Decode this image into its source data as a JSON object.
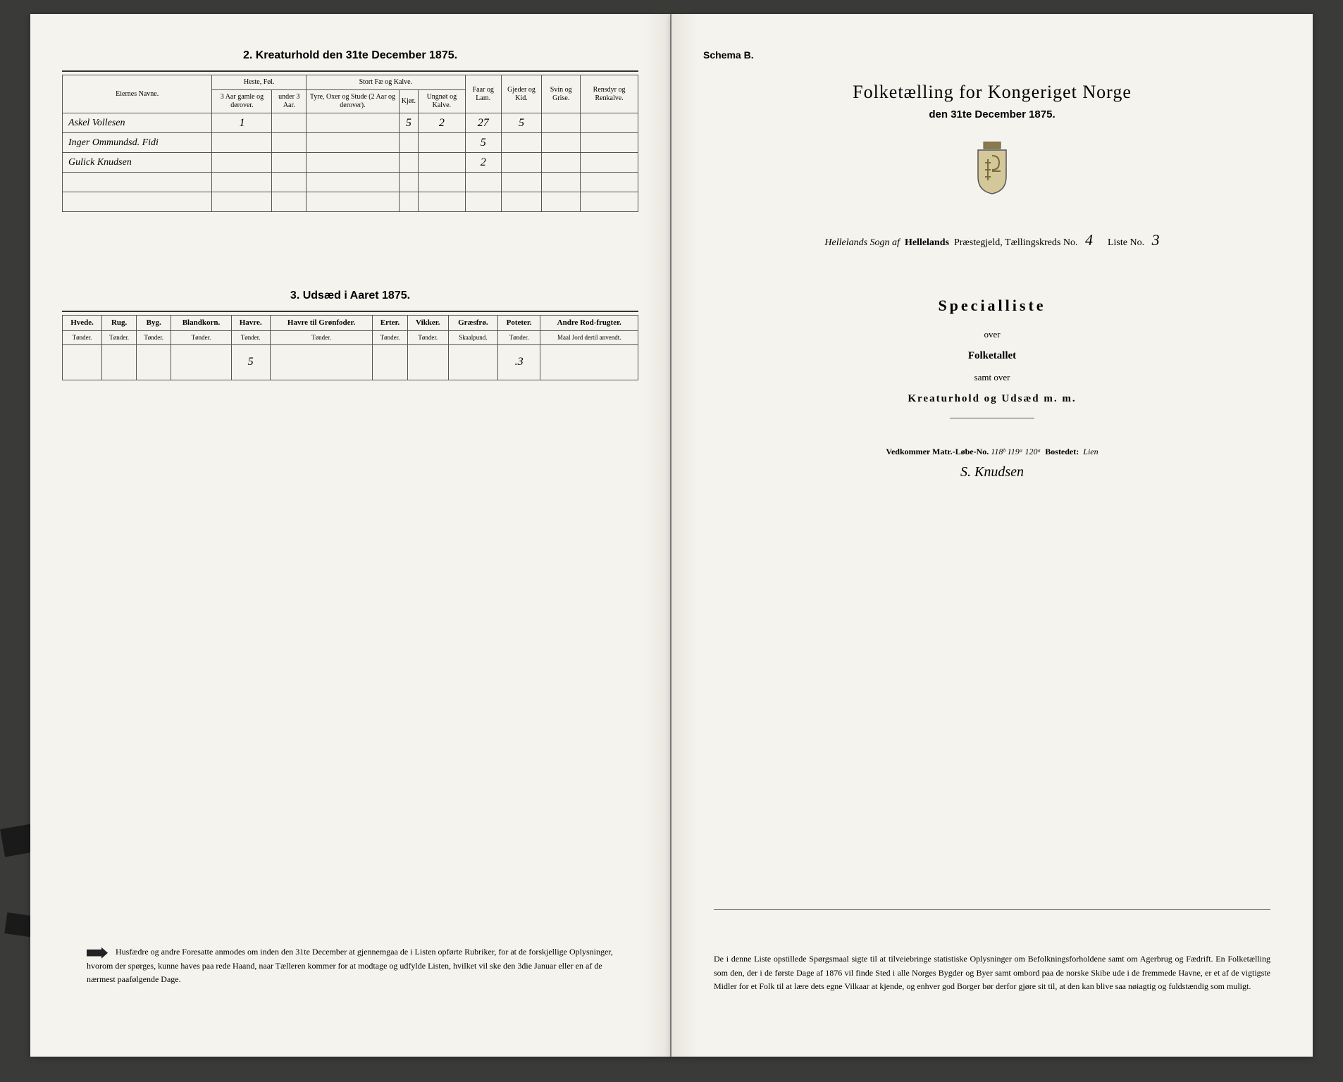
{
  "left": {
    "section2": {
      "title": "2.  Kreaturhold den 31te December 1875.",
      "headers": {
        "owner": "Eiernes Navne.",
        "horses": "Heste, Føl.",
        "horses_sub1": "3 Aar gamle og derover.",
        "horses_sub2": "under 3 Aar.",
        "cattle": "Stort Fæ og Kalve.",
        "cattle_sub1": "Tyre, Oxer og Stude (2 Aar og derover).",
        "cattle_sub2": "Kjør.",
        "cattle_sub3": "Ungnøt og Kalve.",
        "sheep": "Faar og Lam.",
        "goats": "Gjeder og Kid.",
        "pigs": "Svin og Grise.",
        "reindeer": "Rensdyr og Renkalve."
      },
      "rows": [
        {
          "owner": "Askel Vollesen",
          "v": [
            "1",
            "",
            "",
            "5",
            "2",
            "27",
            "5",
            "",
            ""
          ]
        },
        {
          "owner": "Inger Ommundsd. Fidi",
          "v": [
            "",
            "",
            "",
            "",
            "",
            "5",
            "",
            "",
            ""
          ]
        },
        {
          "owner": "Gulick Knudsen",
          "v": [
            "",
            "",
            "",
            "",
            "",
            "2",
            "",
            "",
            ""
          ]
        },
        {
          "owner": "",
          "v": [
            "",
            "",
            "",
            "",
            "",
            "",
            "",
            "",
            ""
          ]
        },
        {
          "owner": "",
          "v": [
            "",
            "",
            "",
            "",
            "",
            "",
            "",
            "",
            ""
          ]
        }
      ]
    },
    "section3": {
      "title": "3.  Udsæd i Aaret 1875.",
      "headers": [
        "Hvede.",
        "Rug.",
        "Byg.",
        "Blandkorn.",
        "Havre.",
        "Havre til Grønfoder.",
        "Erter.",
        "Vikker.",
        "Græsfrø.",
        "Poteter.",
        "Andre Rod-frugter."
      ],
      "subheaders": [
        "Tønder.",
        "Tønder.",
        "Tønder.",
        "Tønder.",
        "Tønder.",
        "Tønder.",
        "Tønder.",
        "Tønder.",
        "Skaalpund.",
        "Tønder.",
        "Maal Jord dertil anvendt."
      ],
      "row": [
        "",
        "",
        "",
        "",
        "5",
        "",
        "",
        "",
        "",
        ".3",
        ""
      ]
    },
    "footer": "Husfædre og andre Foresatte anmodes om inden den 31te December at gjennemgaa de i Listen opførte Rubriker, for at de forskjellige Oplysninger, hvorom der spørges, kunne haves paa rede Haand, naar Tælleren kommer for at modtage og udfylde Listen, hvilket vil ske den 3die Januar eller en af de nærmest paafølgende Dage."
  },
  "right": {
    "schema": "Schema B.",
    "title": "Folketælling for Kongeriget Norge",
    "date": "den 31te December 1875.",
    "parish_hw": "Hellelands Sogn af",
    "parish_print": "Hellelands",
    "parish_label": "Præstegjeld, Tællingskreds No.",
    "kreds_no": "4",
    "liste_label": "Liste No.",
    "liste_no": "3",
    "special": "Specialliste",
    "over": "over",
    "folketallet": "Folketallet",
    "samt": "samt over",
    "kreatur": "Kreaturhold og Udsæd m. m.",
    "matr_label": "Vedkommer Matr.-Løbe-No.",
    "matr_hw": "118ᵇ 119ᵃ 120ᵃ",
    "bosted_label": "Bostedet:",
    "bosted_hw": "Lien",
    "signature": "S. Knudsen",
    "footer": "De i denne Liste opstillede Spørgsmaal sigte til at tilveiebringe statistiske Oplysninger om Befolkningsforholdene samt om Agerbrug og Fædrift. En Folketælling som den, der i de første Dage af 1876 vil finde Sted i alle Norges Bygder og Byer samt ombord paa de norske Skibe ude i de fremmede Havne, er et af de vigtigste Midler for et Folk til at lære dets egne Vilkaar at kjende, og enhver god Borger bør derfor gjøre sit til, at den kan blive saa nøiagtig og fuldstændig som muligt."
  }
}
